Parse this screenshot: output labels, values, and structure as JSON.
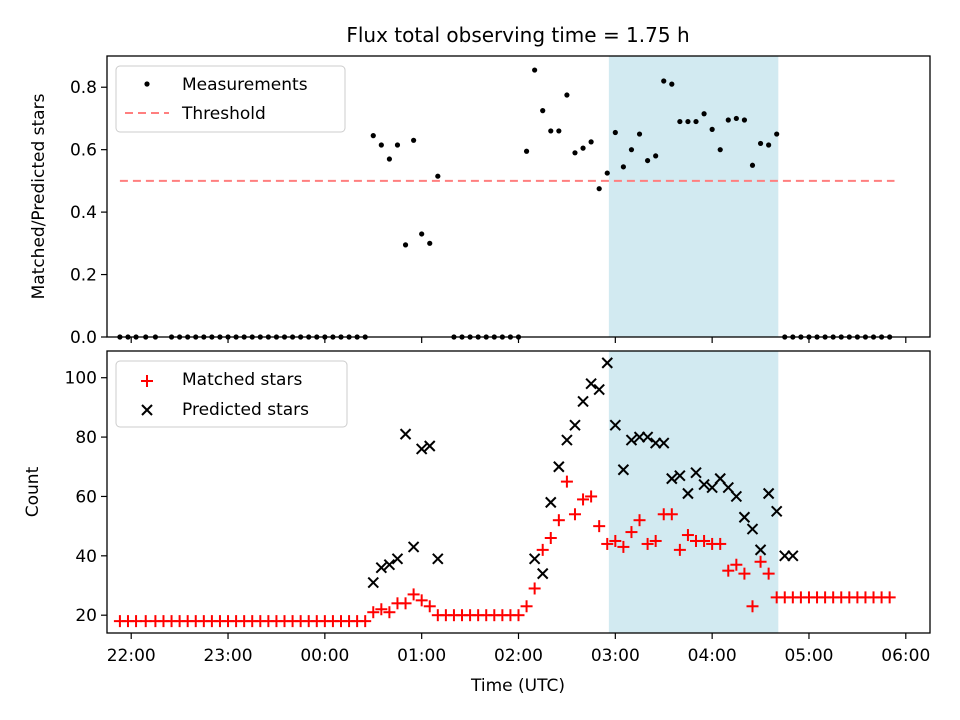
{
  "chart_data": [
    {
      "type": "scatter",
      "title": "Flux total observing time = 1.75 h",
      "ylabel": "Matched/Predicted stars",
      "ylim": [
        0,
        0.9
      ],
      "yticks": [
        "0.0",
        "0.2",
        "0.4",
        "0.6",
        "0.8"
      ],
      "grid": false,
      "legend_position": "top-left",
      "highlight_band": {
        "start": "02:56",
        "end": "04:41",
        "color": "#add8e6"
      },
      "threshold": {
        "name": "Threshold",
        "value": 0.5,
        "x_start": "21:53",
        "x_end": "05:53",
        "color": "#ff7f7f"
      },
      "series": [
        {
          "name": "Measurements",
          "color": "#000000",
          "x": [
            "21:53",
            "21:58",
            "22:03",
            "22:09",
            "22:15",
            "22:25",
            "22:30",
            "22:35",
            "22:40",
            "22:45",
            "22:50",
            "22:55",
            "23:00",
            "23:05",
            "23:10",
            "23:15",
            "23:20",
            "23:25",
            "23:30",
            "23:35",
            "23:40",
            "23:45",
            "23:50",
            "23:55",
            "00:00",
            "00:05",
            "00:10",
            "00:15",
            "00:20",
            "00:25",
            "00:30",
            "00:35",
            "00:40",
            "00:45",
            "00:50",
            "00:55",
            "01:00",
            "01:05",
            "01:10",
            "01:20",
            "01:25",
            "01:30",
            "01:35",
            "01:40",
            "01:45",
            "01:50",
            "01:55",
            "02:00",
            "02:05",
            "02:10",
            "02:15",
            "02:20",
            "02:25",
            "02:30",
            "02:35",
            "02:40",
            "02:45",
            "02:50",
            "02:55",
            "03:00",
            "03:05",
            "03:10",
            "03:15",
            "03:20",
            "03:25",
            "03:30",
            "03:35",
            "03:40",
            "03:45",
            "03:50",
            "03:55",
            "04:00",
            "04:05",
            "04:10",
            "04:15",
            "04:20",
            "04:25",
            "04:30",
            "04:35",
            "04:40",
            "04:45",
            "04:50",
            "04:55",
            "05:00",
            "05:05",
            "05:10",
            "05:15",
            "05:20",
            "05:25",
            "05:30",
            "05:35",
            "05:40",
            "05:45",
            "05:50"
          ],
          "y": [
            0,
            0,
            0,
            0,
            0,
            0,
            0,
            0,
            0,
            0,
            0,
            0,
            0,
            0,
            0,
            0,
            0,
            0,
            0,
            0,
            0,
            0,
            0,
            0,
            0,
            0,
            0,
            0,
            0,
            0,
            0.645,
            0.615,
            0.57,
            0.615,
            0.295,
            0.63,
            0.33,
            0.3,
            0.515,
            0,
            0,
            0,
            0,
            0,
            0,
            0,
            0,
            0,
            0.595,
            0.855,
            0.725,
            0.66,
            0.66,
            0.775,
            0.59,
            0.605,
            0.625,
            0.475,
            0.525,
            0.655,
            0.545,
            0.6,
            0.65,
            0.565,
            0.58,
            0.82,
            0.81,
            0.69,
            0.69,
            0.69,
            0.715,
            0.665,
            0.6,
            0.695,
            0.7,
            0.695,
            0.55,
            0.62,
            0.615,
            0.65,
            0,
            0,
            0,
            0,
            0,
            0,
            0,
            0,
            0,
            0,
            0,
            0,
            0,
            0
          ]
        }
      ]
    },
    {
      "type": "scatter",
      "xlabel": "Time (UTC)",
      "ylabel": "Count",
      "ylim": [
        14,
        109
      ],
      "yticks": [
        "20",
        "40",
        "60",
        "80",
        "100"
      ],
      "xticks": [
        "22:00",
        "23:00",
        "00:00",
        "01:00",
        "02:00",
        "03:00",
        "04:00",
        "05:00",
        "06:00"
      ],
      "grid": false,
      "legend_position": "top-left",
      "highlight_band": {
        "start": "02:56",
        "end": "04:41",
        "color": "#add8e6"
      },
      "series": [
        {
          "name": "Matched stars",
          "marker": "+",
          "color": "#ff0000",
          "x": [
            "21:53",
            "21:58",
            "22:03",
            "22:09",
            "22:15",
            "22:20",
            "22:25",
            "22:30",
            "22:35",
            "22:40",
            "22:45",
            "22:50",
            "22:55",
            "23:00",
            "23:05",
            "23:10",
            "23:15",
            "23:20",
            "23:25",
            "23:30",
            "23:35",
            "23:40",
            "23:45",
            "23:50",
            "23:55",
            "00:00",
            "00:05",
            "00:10",
            "00:15",
            "00:20",
            "00:25",
            "00:30",
            "00:35",
            "00:40",
            "00:45",
            "00:50",
            "00:55",
            "01:00",
            "01:05",
            "01:10",
            "01:15",
            "01:20",
            "01:25",
            "01:30",
            "01:35",
            "01:40",
            "01:45",
            "01:50",
            "01:55",
            "02:00",
            "02:05",
            "02:10",
            "02:15",
            "02:20",
            "02:25",
            "02:30",
            "02:35",
            "02:40",
            "02:45",
            "02:50",
            "02:55",
            "03:00",
            "03:05",
            "03:10",
            "03:15",
            "03:20",
            "03:25",
            "03:30",
            "03:35",
            "03:40",
            "03:45",
            "03:50",
            "03:55",
            "04:00",
            "04:05",
            "04:10",
            "04:15",
            "04:20",
            "04:25",
            "04:30",
            "04:35",
            "04:40",
            "04:45",
            "04:50",
            "04:55",
            "05:00",
            "05:05",
            "05:10",
            "05:15",
            "05:20",
            "05:25",
            "05:30",
            "05:35",
            "05:40",
            "05:45",
            "05:50"
          ],
          "y": [
            18,
            18,
            18,
            18,
            18,
            18,
            18,
            18,
            18,
            18,
            18,
            18,
            18,
            18,
            18,
            18,
            18,
            18,
            18,
            18,
            18,
            18,
            18,
            18,
            18,
            18,
            18,
            18,
            18,
            18,
            18,
            21,
            22,
            21,
            24,
            24,
            27,
            25,
            23,
            20,
            20,
            20,
            20,
            20,
            20,
            20,
            20,
            20,
            20,
            20,
            23,
            29,
            42,
            46,
            52,
            65,
            54,
            59,
            60,
            50,
            44,
            45,
            43,
            48,
            52,
            44,
            45,
            54,
            54,
            42,
            47,
            45,
            45,
            44,
            44,
            35,
            37,
            34,
            23,
            38,
            34,
            26,
            26,
            26,
            26,
            26,
            26,
            26,
            26,
            26,
            26,
            26,
            26,
            26,
            26,
            26
          ]
        },
        {
          "name": "Predicted stars",
          "marker": "x",
          "color": "#000000",
          "x": [
            "00:30",
            "00:35",
            "00:40",
            "00:45",
            "00:50",
            "00:55",
            "01:00",
            "01:05",
            "01:10",
            "02:10",
            "02:15",
            "02:20",
            "02:25",
            "02:30",
            "02:35",
            "02:40",
            "02:45",
            "02:50",
            "02:55",
            "03:00",
            "03:05",
            "03:10",
            "03:15",
            "03:20",
            "03:25",
            "03:30",
            "03:35",
            "03:40",
            "03:45",
            "03:50",
            "03:55",
            "04:00",
            "04:05",
            "04:10",
            "04:15",
            "04:20",
            "04:25",
            "04:30",
            "04:35",
            "04:40",
            "04:45",
            "04:50"
          ],
          "y": [
            31,
            36,
            37,
            39,
            81,
            43,
            76,
            77,
            39,
            39,
            34,
            58,
            70,
            79,
            84,
            92,
            98,
            96,
            105,
            84,
            69,
            79,
            80,
            80,
            78,
            78,
            66,
            67,
            61,
            68,
            64,
            63,
            66,
            63,
            60,
            53,
            49,
            42,
            61,
            55,
            40,
            40
          ]
        }
      ]
    }
  ]
}
